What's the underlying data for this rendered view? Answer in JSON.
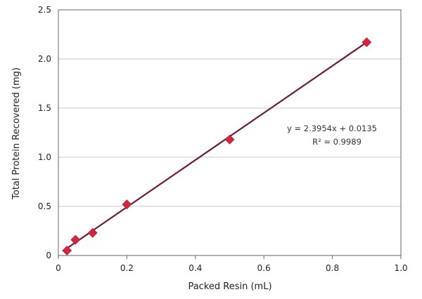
{
  "chart_data": {
    "type": "scatter",
    "title": "",
    "xlabel": "Packed Resin (mL)",
    "ylabel": "Total Protein Recovered (mg)",
    "xlim": [
      0,
      1.0
    ],
    "ylim": [
      0,
      2.5
    ],
    "xticks": [
      "0",
      "0.2",
      "0.4",
      "0.6",
      "0.8",
      "1.0"
    ],
    "yticks": [
      "0",
      "0.5",
      "1.0",
      "1.5",
      "2.0",
      "2.5"
    ],
    "grid": "horizontal",
    "legend": "none",
    "series": [
      {
        "marker": "diamond",
        "color": "#d0263e",
        "x": [
          0.025,
          0.05,
          0.1,
          0.2,
          0.5,
          0.9
        ],
        "y": [
          0.05,
          0.16,
          0.23,
          0.52,
          1.18,
          2.17
        ]
      }
    ],
    "trendline": {
      "slope": 2.3954,
      "intercept": 0.0135,
      "x_range": [
        0.025,
        0.9
      ],
      "color": "#6b1a3c"
    },
    "annotations": {
      "equation": "y = 2.3954x + 0.0135",
      "r_squared": "R² = 0.9989"
    },
    "colors": {
      "gridline": "#c8c8c8",
      "axis": "#666666",
      "marker": "#d0263e",
      "trendline": "#6b1a3c"
    }
  }
}
